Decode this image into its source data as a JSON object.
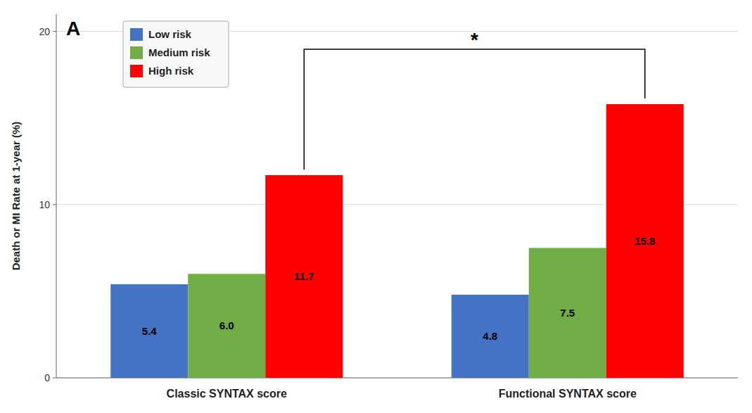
{
  "chart_data": {
    "type": "bar",
    "ylabel": "Death or MI Rate at 1-year (%)",
    "categories": [
      "Classic SYNTAX score",
      "Functional SYNTAX score"
    ],
    "series": [
      {
        "name": "Low risk",
        "color": "#4472C4",
        "values": [
          5.4,
          4.8
        ]
      },
      {
        "name": "Medium risk",
        "color": "#70AD47",
        "values": [
          6.0,
          7.5
        ],
        "value_labels": [
          "6.0",
          "7.5"
        ]
      },
      {
        "name": "High risk",
        "color": "#FF0000",
        "values": [
          11.7,
          15.8
        ]
      }
    ],
    "ylim": [
      0,
      21
    ],
    "yticks": [
      0,
      10,
      20
    ],
    "grid": true,
    "legend": "upper left",
    "data_labels": true,
    "annotations": [
      "*",
      "A"
    ]
  }
}
